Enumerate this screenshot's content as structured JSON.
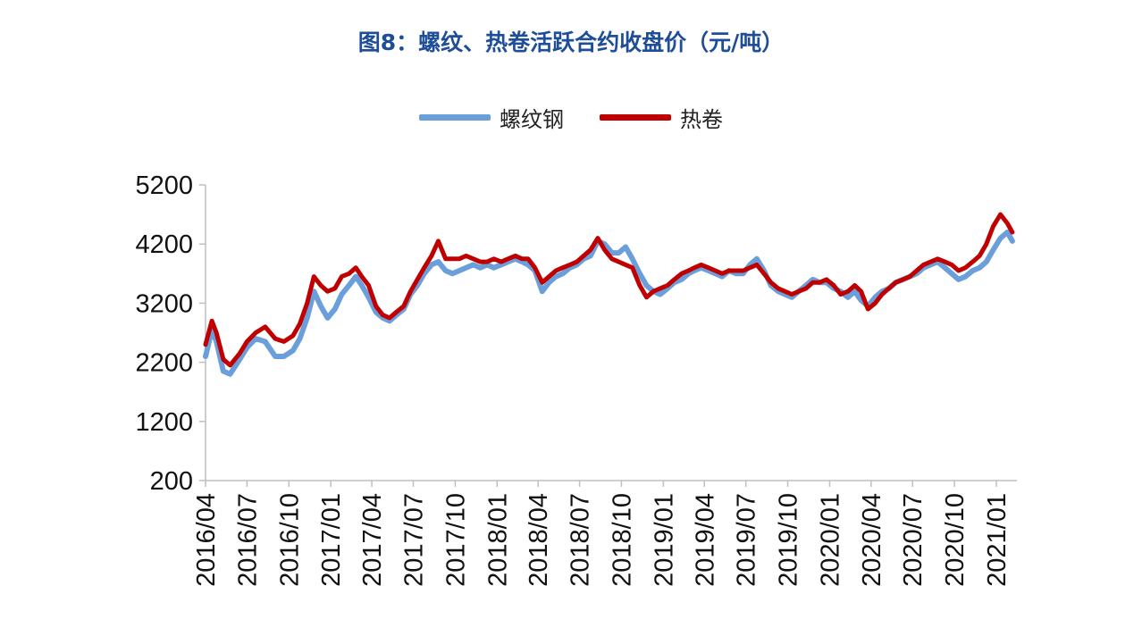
{
  "chart_data": {
    "type": "line",
    "title": "图8：螺纹、热卷活跃合约收盘价（元/吨）",
    "xlabel": "",
    "ylabel": "",
    "ylim": [
      200,
      5200
    ],
    "yticks": [
      200,
      1200,
      2200,
      3200,
      4200,
      5200
    ],
    "xticks": [
      "2016/04",
      "2016/07",
      "2016/10",
      "2017/01",
      "2017/04",
      "2017/07",
      "2017/10",
      "2018/01",
      "2018/04",
      "2018/07",
      "2018/10",
      "2019/01",
      "2019/04",
      "2019/07",
      "2019/10",
      "2020/01",
      "2020/04",
      "2020/07",
      "2020/10",
      "2021/01"
    ],
    "grid": false,
    "legend_position": "top-center",
    "x": [
      "2016-04-01",
      "2016-04-15",
      "2016-04-25",
      "2016-05-10",
      "2016-05-25",
      "2016-06-15",
      "2016-07-01",
      "2016-07-20",
      "2016-08-10",
      "2016-09-01",
      "2016-09-20",
      "2016-10-10",
      "2016-10-25",
      "2016-11-10",
      "2016-11-25",
      "2016-12-10",
      "2016-12-25",
      "2017-01-10",
      "2017-01-25",
      "2017-02-10",
      "2017-02-25",
      "2017-03-10",
      "2017-03-25",
      "2017-04-10",
      "2017-04-25",
      "2017-05-10",
      "2017-05-25",
      "2017-06-10",
      "2017-06-25",
      "2017-07-10",
      "2017-07-25",
      "2017-08-10",
      "2017-08-25",
      "2017-09-10",
      "2017-09-25",
      "2017-10-10",
      "2017-10-25",
      "2017-11-10",
      "2017-11-25",
      "2017-12-10",
      "2017-12-25",
      "2018-01-10",
      "2018-01-25",
      "2018-02-10",
      "2018-02-25",
      "2018-03-10",
      "2018-03-25",
      "2018-04-10",
      "2018-04-25",
      "2018-05-10",
      "2018-05-25",
      "2018-06-10",
      "2018-06-25",
      "2018-07-10",
      "2018-07-25",
      "2018-08-10",
      "2018-08-25",
      "2018-09-10",
      "2018-09-25",
      "2018-10-10",
      "2018-10-25",
      "2018-11-10",
      "2018-11-25",
      "2018-12-10",
      "2018-12-25",
      "2019-01-10",
      "2019-01-25",
      "2019-02-10",
      "2019-02-25",
      "2019-03-10",
      "2019-03-25",
      "2019-04-10",
      "2019-04-25",
      "2019-05-10",
      "2019-05-25",
      "2019-06-10",
      "2019-06-25",
      "2019-07-10",
      "2019-07-25",
      "2019-08-10",
      "2019-08-25",
      "2019-09-10",
      "2019-09-25",
      "2019-10-10",
      "2019-10-25",
      "2019-11-10",
      "2019-11-25",
      "2019-12-10",
      "2019-12-25",
      "2020-01-10",
      "2020-01-25",
      "2020-02-10",
      "2020-02-25",
      "2020-03-10",
      "2020-03-25",
      "2020-04-10",
      "2020-04-25",
      "2020-05-10",
      "2020-05-25",
      "2020-06-10",
      "2020-06-25",
      "2020-07-10",
      "2020-07-25",
      "2020-08-10",
      "2020-08-25",
      "2020-09-10",
      "2020-09-25",
      "2020-10-10",
      "2020-10-25",
      "2020-11-10",
      "2020-11-25",
      "2020-12-10",
      "2020-12-25",
      "2021-01-10",
      "2021-01-25",
      "2021-02-05"
    ],
    "series": [
      {
        "name": "螺纹钢",
        "color": "#6a9fdc",
        "values": [
          2300,
          2750,
          2550,
          2050,
          2000,
          2250,
          2450,
          2600,
          2550,
          2300,
          2300,
          2400,
          2600,
          2950,
          3400,
          3150,
          2950,
          3100,
          3350,
          3500,
          3650,
          3500,
          3300,
          3050,
          2950,
          2900,
          3000,
          3100,
          3350,
          3500,
          3700,
          3850,
          3900,
          3750,
          3700,
          3750,
          3800,
          3850,
          3800,
          3850,
          3800,
          3850,
          3900,
          3950,
          3900,
          3850,
          3750,
          3400,
          3550,
          3650,
          3700,
          3800,
          3850,
          3950,
          4000,
          4250,
          4200,
          4050,
          4050,
          4150,
          3950,
          3700,
          3500,
          3400,
          3350,
          3450,
          3550,
          3600,
          3700,
          3750,
          3800,
          3750,
          3700,
          3650,
          3750,
          3700,
          3700,
          3850,
          3950,
          3750,
          3500,
          3400,
          3350,
          3300,
          3400,
          3500,
          3600,
          3550,
          3550,
          3450,
          3400,
          3300,
          3400,
          3250,
          3150,
          3300,
          3400,
          3450,
          3550,
          3600,
          3650,
          3700,
          3800,
          3850,
          3900,
          3800,
          3700,
          3600,
          3650,
          3750,
          3800,
          3900,
          4100,
          4300,
          4400,
          4250
        ]
      },
      {
        "name": "热卷",
        "color": "#c00000",
        "values": [
          2500,
          2900,
          2700,
          2250,
          2150,
          2350,
          2550,
          2700,
          2800,
          2600,
          2550,
          2650,
          2850,
          3200,
          3650,
          3500,
          3400,
          3450,
          3650,
          3700,
          3800,
          3650,
          3500,
          3150,
          3000,
          2950,
          3050,
          3150,
          3400,
          3600,
          3800,
          4000,
          4250,
          3950,
          3950,
          3950,
          4000,
          3950,
          3900,
          3900,
          3950,
          3900,
          3950,
          4000,
          3950,
          3950,
          3800,
          3550,
          3650,
          3750,
          3800,
          3850,
          3900,
          4000,
          4100,
          4300,
          4100,
          3950,
          3900,
          3850,
          3800,
          3500,
          3300,
          3400,
          3450,
          3500,
          3600,
          3700,
          3750,
          3800,
          3850,
          3800,
          3750,
          3700,
          3750,
          3750,
          3750,
          3800,
          3850,
          3700,
          3550,
          3450,
          3400,
          3350,
          3400,
          3450,
          3550,
          3550,
          3600,
          3500,
          3350,
          3400,
          3500,
          3400,
          3100,
          3200,
          3350,
          3450,
          3550,
          3600,
          3650,
          3750,
          3850,
          3900,
          3950,
          3900,
          3850,
          3750,
          3800,
          3900,
          4000,
          4200,
          4500,
          4700,
          4550,
          4400
        ]
      }
    ]
  }
}
